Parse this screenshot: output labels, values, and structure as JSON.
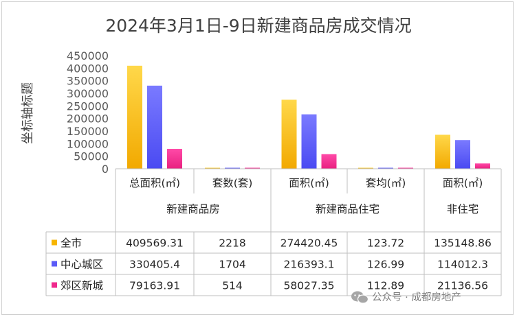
{
  "chart_data": {
    "type": "bar",
    "title": "2024年3月1日-9日新建商品房成交情况",
    "ylabel": "坐标轴标题",
    "ylim": [
      0,
      450000
    ],
    "yticks": [
      "0",
      "50000",
      "100000",
      "150000",
      "200000",
      "250000",
      "300000",
      "350000",
      "400000",
      "450000"
    ],
    "gridlines": false,
    "legend_position": "left of data table",
    "categories": [
      "总面积(㎡)",
      "套数(套)",
      "面积(㎡)",
      "套均(㎡)",
      "面积(㎡)"
    ],
    "category_groups": [
      {
        "label": "新建商品房",
        "span": 2
      },
      {
        "label": "新建商品住宅",
        "span": 2
      },
      {
        "label": "非住宅",
        "span": 1
      }
    ],
    "series": [
      {
        "name": "全市",
        "color": "#f7b500",
        "values": [
          409569.31,
          2218,
          274420.45,
          123.72,
          135148.86
        ],
        "labels": [
          "409569.31",
          "2218",
          "274420.45",
          "123.72",
          "135148.86"
        ]
      },
      {
        "name": "中心城区",
        "color": "#5b5bf7",
        "values": [
          330405.4,
          1704,
          216393.1,
          126.99,
          114012.3
        ],
        "labels": [
          "330405.4",
          "1704",
          "216393.1",
          "126.99",
          "114012.3"
        ]
      },
      {
        "name": "郊区新城",
        "color": "#f0288c",
        "values": [
          79163.91,
          514,
          58027.35,
          112.89,
          21136.56
        ],
        "labels": [
          "79163.91",
          "514",
          "58027.35",
          "112.89",
          "21136.56"
        ]
      }
    ]
  },
  "watermark": {
    "icon": "wechat-icon",
    "text": "公众号 · 成都房地产"
  }
}
